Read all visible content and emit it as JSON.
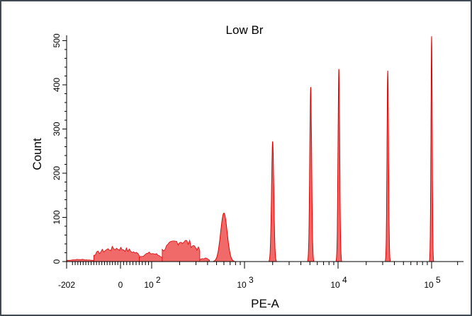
{
  "chart_data": {
    "type": "area",
    "title": "Low Br",
    "xlabel": "PE-A",
    "ylabel": "Count",
    "x_scale": "biexponential",
    "xlim": [
      -202,
      262144
    ],
    "ylim": [
      0,
      512
    ],
    "grid": false,
    "fill_color": "#f06a6a",
    "line_color": "#e00000",
    "x_ticks": [
      {
        "value": -202,
        "label": "-202"
      },
      {
        "value": 0,
        "label": "0"
      },
      {
        "value": 100,
        "label": "10",
        "exp": "2"
      },
      {
        "value": 1000,
        "label": "10",
        "exp": "3"
      },
      {
        "value": 10000,
        "label": "10",
        "exp": "4"
      },
      {
        "value": 100000,
        "label": "10",
        "exp": "5"
      }
    ],
    "y_ticks": [
      0,
      100,
      200,
      300,
      400,
      500
    ],
    "peaks": [
      {
        "center": 600,
        "height": 110,
        "width": 0.035
      },
      {
        "center": 2000,
        "height": 272,
        "width": 0.012
      },
      {
        "center": 5100,
        "height": 395,
        "width": 0.01
      },
      {
        "center": 10200,
        "height": 436,
        "width": 0.009
      },
      {
        "center": 34000,
        "height": 432,
        "width": 0.008
      },
      {
        "center": 100000,
        "height": 510,
        "width": 0.007
      }
    ],
    "background_segments": [
      {
        "from": -202,
        "to": -100,
        "height": 5
      },
      {
        "from": -100,
        "to": 60,
        "height": 32
      },
      {
        "from": 60,
        "to": 130,
        "height": 20
      },
      {
        "from": 130,
        "to": 330,
        "height": 50
      },
      {
        "from": 330,
        "to": 420,
        "height": 8
      }
    ]
  }
}
